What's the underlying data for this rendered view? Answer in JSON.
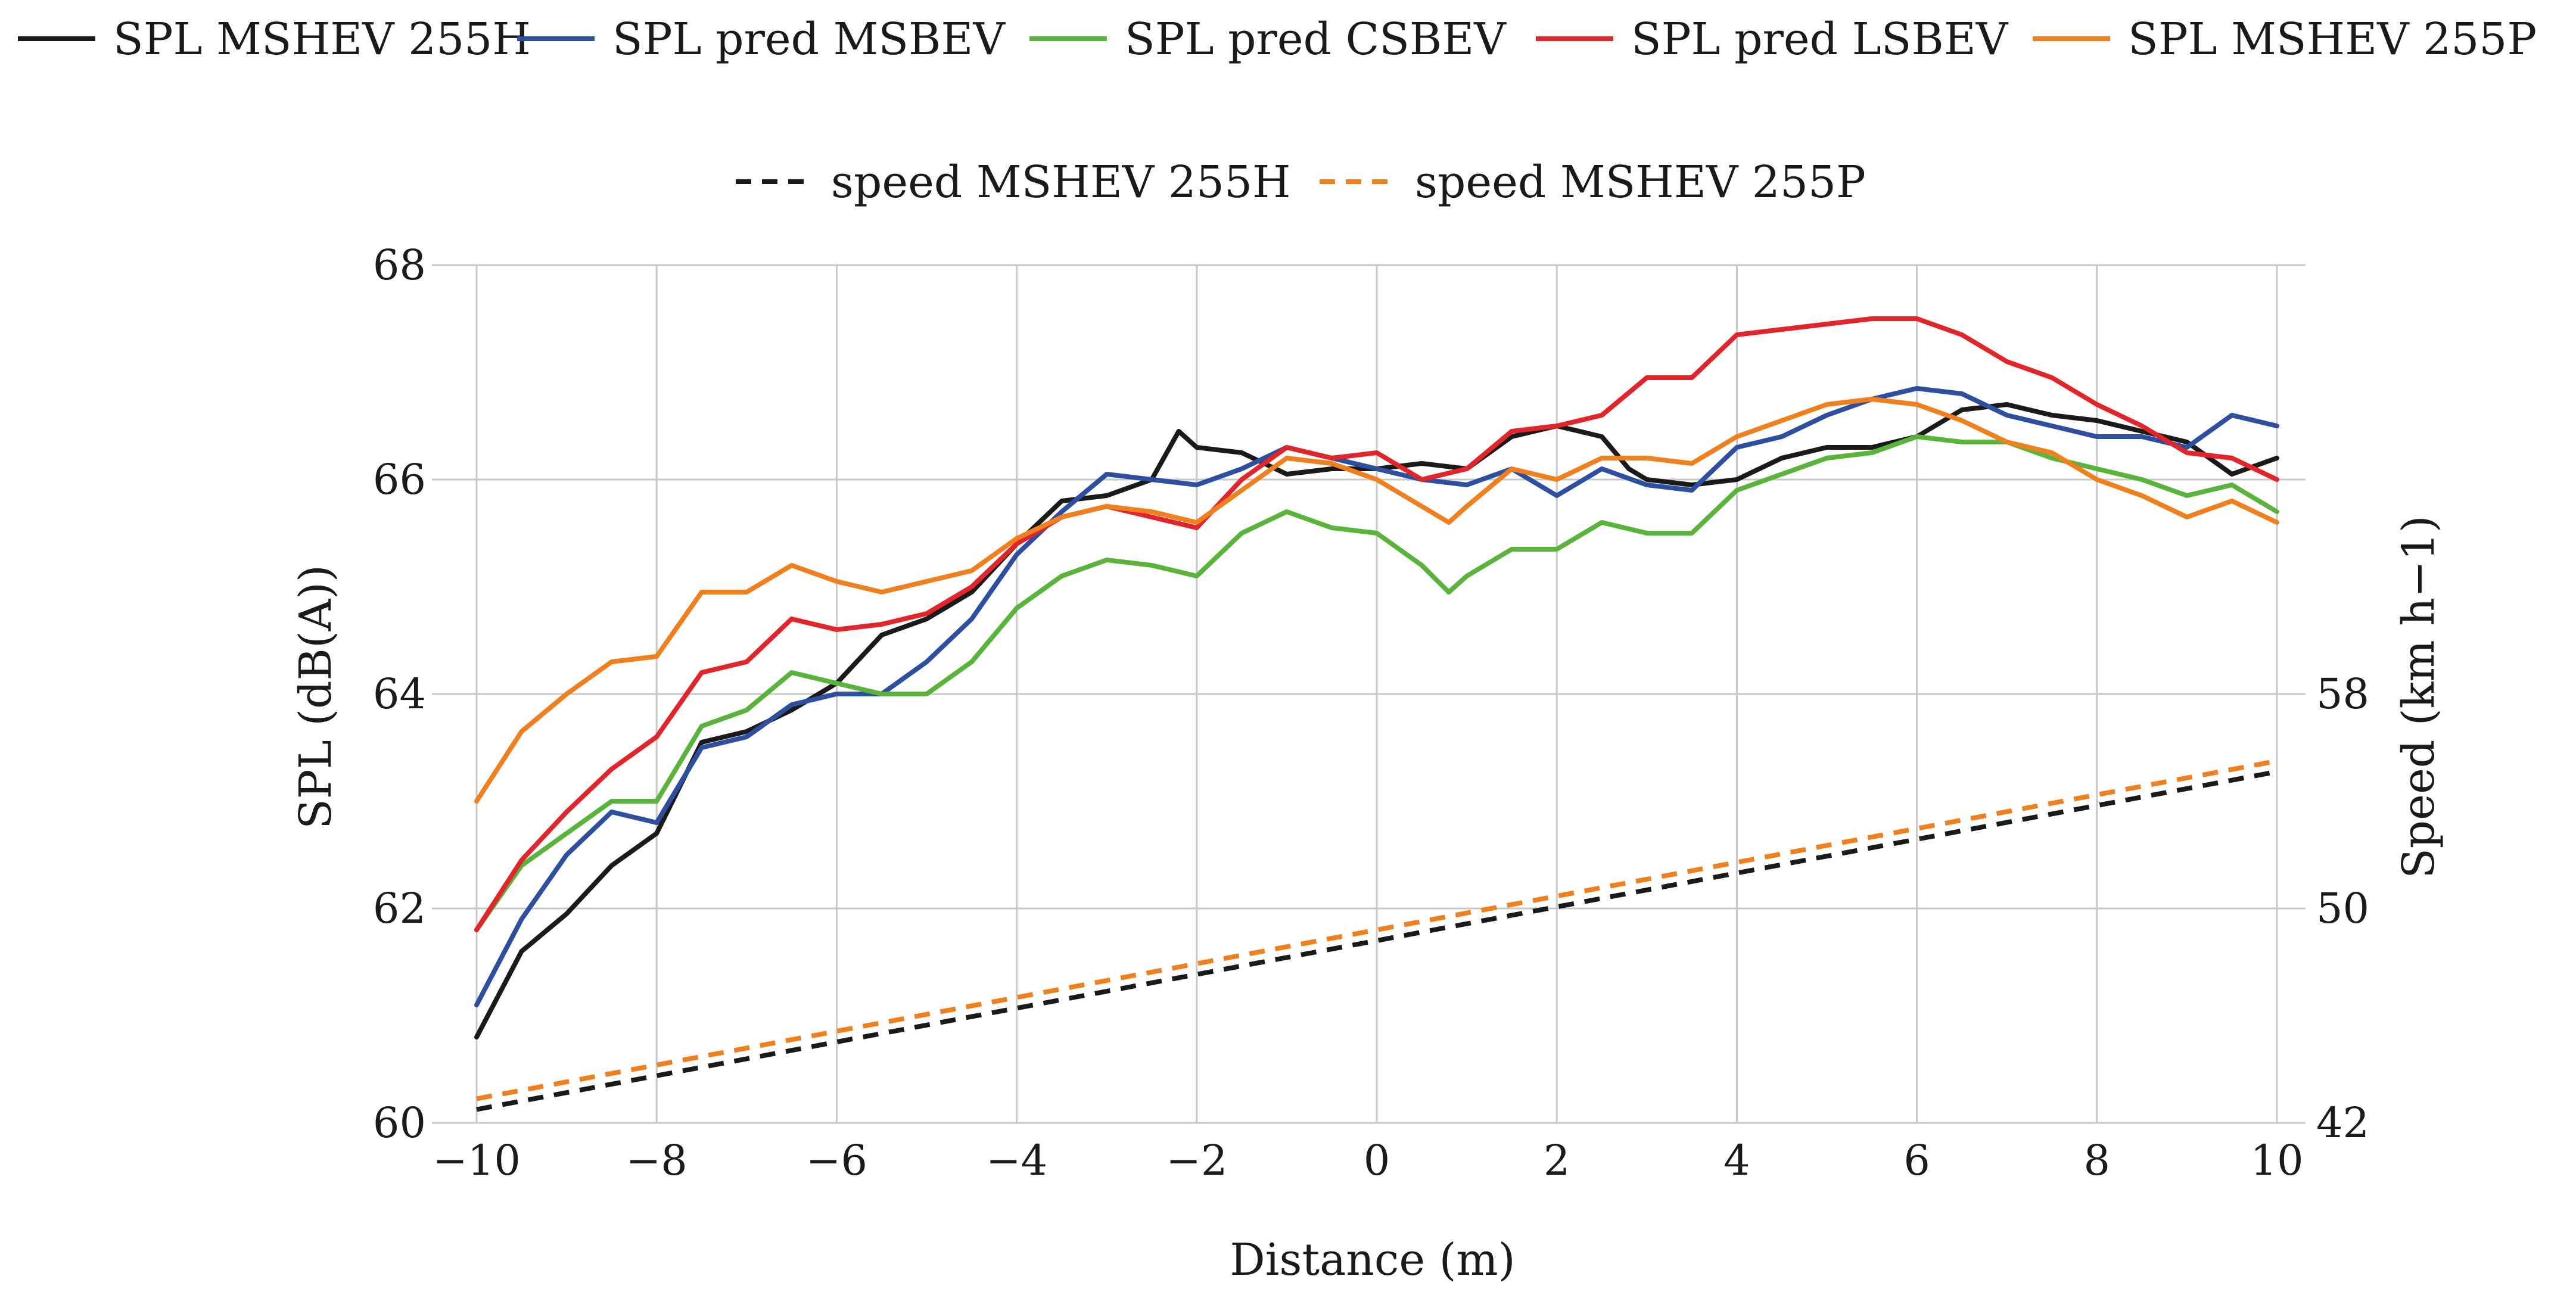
{
  "chart_data": {
    "type": "line",
    "xlabel": "Distance (m)",
    "ylabel_left": "SPL (dB(A))",
    "ylabel_right": "Speed (km h−1)",
    "xlim": [
      -10,
      10
    ],
    "ylim_left": [
      60,
      68
    ],
    "ylim_right": [
      42,
      74
    ],
    "x_ticks": [
      "−10",
      "−8",
      "−6",
      "−4",
      "−2",
      "0",
      "2",
      "4",
      "6",
      "8",
      "10"
    ],
    "y_left_ticks": [
      "60",
      "62",
      "64",
      "66",
      "68"
    ],
    "y_right_ticks": [
      "42",
      "50",
      "58"
    ],
    "grid": true,
    "legend_position": "top",
    "series": [
      {
        "name": "SPL MSHEV 255H",
        "axis": "left",
        "color": "#1a1a1a",
        "dash": false,
        "x": [
          -10,
          -9.5,
          -9,
          -8.5,
          -8,
          -7.5,
          -7,
          -6.5,
          -6,
          -5.5,
          -5,
          -4.5,
          -4,
          -3.5,
          -3,
          -2.5,
          -2.2,
          -2,
          -1.5,
          -1,
          -0.5,
          0,
          0.5,
          1,
          1.5,
          2,
          2.5,
          2.8,
          3,
          3.5,
          4,
          4.5,
          5,
          5.5,
          6,
          6.5,
          7,
          7.5,
          8,
          8.5,
          9,
          9.5,
          10
        ],
        "y": [
          60.8,
          61.6,
          61.95,
          62.4,
          62.7,
          63.55,
          63.65,
          63.85,
          64.1,
          64.55,
          64.7,
          64.95,
          65.4,
          65.8,
          65.85,
          66.0,
          66.45,
          66.3,
          66.25,
          66.05,
          66.1,
          66.1,
          66.15,
          66.1,
          66.4,
          66.5,
          66.4,
          66.1,
          66.0,
          65.95,
          66.0,
          66.2,
          66.3,
          66.3,
          66.4,
          66.65,
          66.7,
          66.6,
          66.55,
          66.45,
          66.35,
          66.05,
          66.2
        ]
      },
      {
        "name": "SPL pred MSBEV",
        "axis": "left",
        "color": "#2e4fa0",
        "dash": false,
        "x": [
          -10,
          -9.5,
          -9,
          -8.5,
          -8,
          -7.5,
          -7,
          -6.5,
          -6,
          -5.5,
          -5,
          -4.5,
          -4,
          -3.5,
          -3,
          -2.5,
          -2,
          -1.5,
          -1,
          -0.5,
          0,
          0.5,
          1,
          1.5,
          2,
          2.5,
          3,
          3.5,
          4,
          4.5,
          5,
          5.5,
          6,
          6.5,
          7,
          7.5,
          8,
          8.5,
          9,
          9.5,
          10
        ],
        "y": [
          61.1,
          61.9,
          62.5,
          62.9,
          62.8,
          63.5,
          63.6,
          63.9,
          64.0,
          64.0,
          64.3,
          64.7,
          65.3,
          65.7,
          66.05,
          66.0,
          65.95,
          66.1,
          66.3,
          66.2,
          66.1,
          66.0,
          65.95,
          66.1,
          65.85,
          66.1,
          65.95,
          65.9,
          66.3,
          66.4,
          66.6,
          66.75,
          66.85,
          66.8,
          66.6,
          66.5,
          66.4,
          66.4,
          66.3,
          66.6,
          66.5
        ]
      },
      {
        "name": "SPL pred CSBEV",
        "axis": "left",
        "color": "#5ab43c",
        "dash": false,
        "x": [
          -10,
          -9.5,
          -9,
          -8.5,
          -8,
          -7.5,
          -7,
          -6.5,
          -6,
          -5.5,
          -5,
          -4.5,
          -4,
          -3.5,
          -3,
          -2.5,
          -2,
          -1.5,
          -1,
          -0.5,
          0,
          0.5,
          0.8,
          1,
          1.5,
          2,
          2.5,
          3,
          3.5,
          4,
          4.5,
          5,
          5.5,
          6,
          6.5,
          7,
          7.5,
          8,
          8.5,
          9,
          9.5,
          10
        ],
        "y": [
          61.8,
          62.4,
          62.7,
          63.0,
          63.0,
          63.7,
          63.85,
          64.2,
          64.1,
          64.0,
          64.0,
          64.3,
          64.8,
          65.1,
          65.25,
          65.2,
          65.1,
          65.5,
          65.7,
          65.55,
          65.5,
          65.2,
          64.95,
          65.1,
          65.35,
          65.35,
          65.6,
          65.5,
          65.5,
          65.9,
          66.05,
          66.2,
          66.25,
          66.4,
          66.35,
          66.35,
          66.2,
          66.1,
          66.0,
          65.85,
          65.95,
          65.7
        ]
      },
      {
        "name": "SPL pred LSBEV",
        "axis": "left",
        "color": "#e1252a",
        "dash": false,
        "x": [
          -10,
          -9.5,
          -9,
          -8.5,
          -8,
          -7.5,
          -7,
          -6.5,
          -6,
          -5.5,
          -5,
          -4.5,
          -4,
          -3.5,
          -3,
          -2.5,
          -2,
          -1.5,
          -1,
          -0.5,
          0,
          0.5,
          1,
          1.5,
          2,
          2.5,
          3,
          3.5,
          4,
          4.5,
          5,
          5.5,
          6,
          6.5,
          7,
          7.5,
          8,
          8.5,
          9,
          9.5,
          10
        ],
        "y": [
          61.8,
          62.45,
          62.9,
          63.3,
          63.6,
          64.2,
          64.3,
          64.7,
          64.6,
          64.65,
          64.75,
          65.0,
          65.4,
          65.65,
          65.75,
          65.65,
          65.55,
          66.0,
          66.3,
          66.2,
          66.25,
          66.0,
          66.1,
          66.45,
          66.5,
          66.6,
          66.95,
          66.95,
          67.35,
          67.4,
          67.45,
          67.5,
          67.5,
          67.35,
          67.1,
          66.95,
          66.7,
          66.5,
          66.25,
          66.2,
          66.0
        ]
      },
      {
        "name": "SPL MSHEV 255P",
        "axis": "left",
        "color": "#f07f1e",
        "dash": false,
        "x": [
          -10,
          -9.5,
          -9,
          -8.5,
          -8,
          -7.5,
          -7,
          -6.5,
          -6,
          -5.5,
          -5,
          -4.5,
          -4,
          -3.5,
          -3,
          -2.5,
          -2,
          -1.5,
          -1,
          -0.5,
          0,
          0.5,
          0.8,
          1,
          1.5,
          2,
          2.5,
          3,
          3.5,
          4,
          4.5,
          5,
          5.5,
          6,
          6.5,
          7,
          7.5,
          8,
          8.5,
          9,
          9.5,
          10
        ],
        "y": [
          63.0,
          63.65,
          64.0,
          64.3,
          64.35,
          64.95,
          64.95,
          65.2,
          65.05,
          64.95,
          65.05,
          65.15,
          65.45,
          65.65,
          65.75,
          65.7,
          65.6,
          65.9,
          66.2,
          66.15,
          66.0,
          65.75,
          65.6,
          65.75,
          66.1,
          66.0,
          66.2,
          66.2,
          66.15,
          66.4,
          66.55,
          66.7,
          66.75,
          66.7,
          66.55,
          66.35,
          66.25,
          66.0,
          65.85,
          65.65,
          65.8,
          65.6
        ]
      },
      {
        "name": "speed MSHEV 255H",
        "axis": "right",
        "color": "#1a1a1a",
        "dash": true,
        "x": [
          -10,
          10
        ],
        "y": [
          42.5,
          55.1
        ]
      },
      {
        "name": "speed MSHEV 255P",
        "axis": "right",
        "color": "#f07f1e",
        "dash": true,
        "x": [
          -10,
          10
        ],
        "y": [
          42.9,
          55.5
        ]
      }
    ]
  }
}
